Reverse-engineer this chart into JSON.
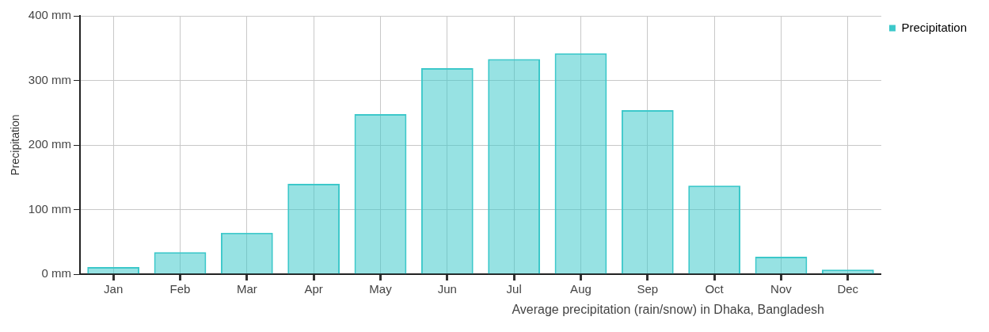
{
  "chart_data": {
    "type": "bar",
    "ylabel": "Precipitation",
    "categories": [
      "Jan",
      "Feb",
      "Mar",
      "Apr",
      "May",
      "Jun",
      "Jul",
      "Aug",
      "Sep",
      "Oct",
      "Nov",
      "Dec"
    ],
    "series": [
      {
        "name": "Precipitation",
        "color": "#3cc8ca",
        "values": [
          11,
          34,
          64,
          140,
          248,
          319,
          333,
          342,
          254,
          137,
          27,
          7
        ]
      }
    ],
    "ylim": [
      0,
      400
    ],
    "yticks": [
      {
        "value": 0,
        "label": "0 mm"
      },
      {
        "value": 100,
        "label": "100 mm"
      },
      {
        "value": 200,
        "label": "200 mm"
      },
      {
        "value": 300,
        "label": "300 mm"
      },
      {
        "value": 400,
        "label": "400 mm"
      }
    ],
    "grid": true,
    "legend": "top right",
    "annotations": [
      "Average precipitation (rain/snow) in Dhaka, Bangladesh"
    ]
  }
}
